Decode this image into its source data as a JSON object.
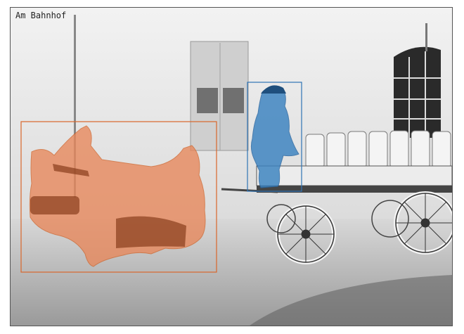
{
  "image": {
    "caption": "Am Bahnhof"
  },
  "annotations": [
    {
      "id": "horse",
      "color": "#e07a3c"
    },
    {
      "id": "person",
      "color": "#2f74b5"
    }
  ]
}
